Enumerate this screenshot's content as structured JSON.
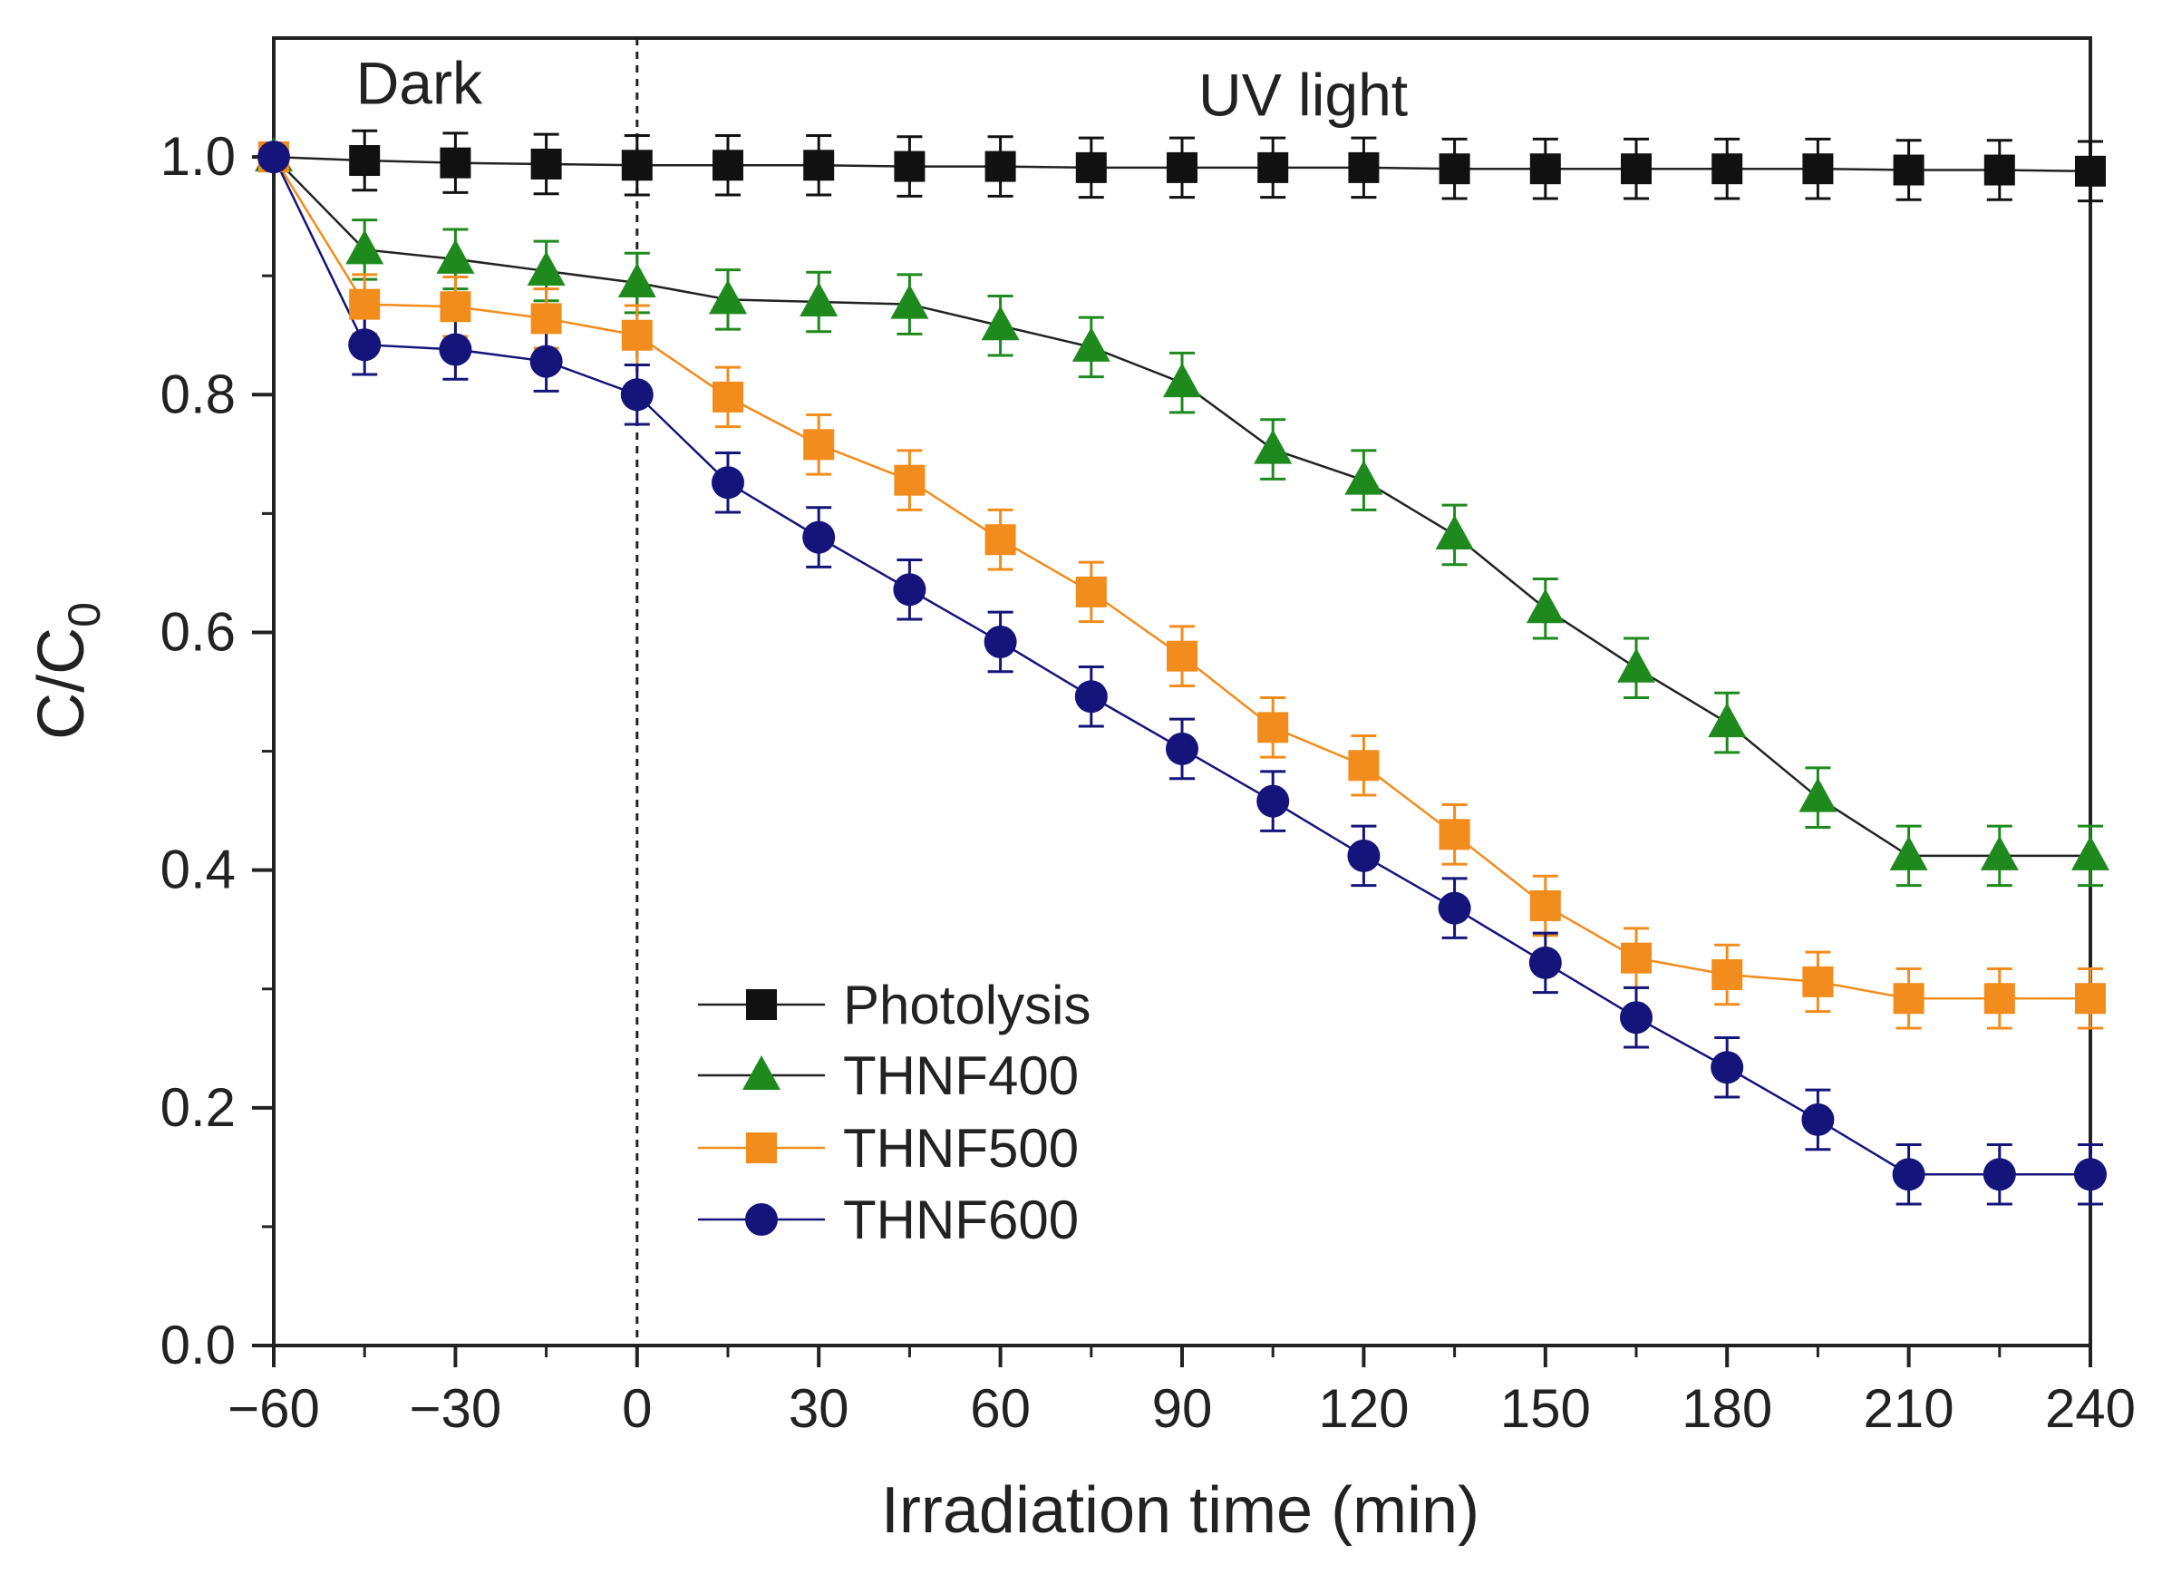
{
  "chart_data": {
    "type": "line",
    "title": "",
    "xlabel": "Irradiation time (min)",
    "ylabel_main": "C/C",
    "ylabel_sub": "0",
    "xlim": [
      -60,
      240
    ],
    "ylim": [
      0.0,
      1.1
    ],
    "x_ticks": [
      -60,
      -30,
      0,
      30,
      60,
      90,
      120,
      150,
      180,
      210,
      240
    ],
    "x_tick_labels": [
      "−60",
      "−30",
      "0",
      "30",
      "60",
      "90",
      "120",
      "150",
      "180",
      "210",
      "240"
    ],
    "y_ticks": [
      0.0,
      0.2,
      0.4,
      0.6,
      0.8,
      1.0
    ],
    "y_tick_labels": [
      "0.0",
      "0.2",
      "0.4",
      "0.6",
      "0.8",
      "1.0"
    ],
    "annotations": [
      {
        "name": "dark-region-label",
        "text": "Dark",
        "x": -36,
        "y": 1.06
      },
      {
        "name": "uv-region-label",
        "text": "UV light",
        "x": 110,
        "y": 1.05
      }
    ],
    "divider_x": 0,
    "legend_position": "lower-center",
    "grid": false,
    "x": [
      -60,
      -45,
      -30,
      -15,
      0,
      15,
      30,
      45,
      60,
      75,
      90,
      105,
      120,
      135,
      150,
      165,
      180,
      195,
      210,
      225,
      240
    ],
    "series": [
      {
        "name": "Photolysis",
        "marker": "square",
        "color": "#111111",
        "line_color": "#222222",
        "values": [
          1.0,
          0.997,
          0.995,
          0.994,
          0.993,
          0.993,
          0.993,
          0.992,
          0.992,
          0.991,
          0.991,
          0.991,
          0.991,
          0.99,
          0.99,
          0.99,
          0.99,
          0.99,
          0.989,
          0.989,
          0.988
        ],
        "errors": [
          0.025,
          0.025,
          0.025,
          0.025,
          0.025,
          0.025,
          0.025,
          0.025,
          0.025,
          0.025,
          0.025,
          0.025,
          0.025,
          0.025,
          0.025,
          0.025,
          0.025,
          0.025,
          0.025,
          0.025,
          0.025
        ]
      },
      {
        "name": "THNF400",
        "marker": "triangle",
        "color": "#1e8a1e",
        "line_color": "#222222",
        "values": [
          1.0,
          0.922,
          0.914,
          0.904,
          0.894,
          0.88,
          0.878,
          0.876,
          0.858,
          0.84,
          0.81,
          0.754,
          0.728,
          0.682,
          0.62,
          0.57,
          0.524,
          0.461,
          0.412,
          0.412,
          0.412
        ],
        "errors": [
          0.025,
          0.025,
          0.025,
          0.025,
          0.025,
          0.025,
          0.025,
          0.025,
          0.025,
          0.025,
          0.025,
          0.025,
          0.025,
          0.025,
          0.025,
          0.025,
          0.025,
          0.025,
          0.025,
          0.025,
          0.025
        ]
      },
      {
        "name": "THNF500",
        "marker": "square",
        "color": "#f28c1c",
        "line_color": "#f28c1c",
        "values": [
          1.0,
          0.876,
          0.874,
          0.864,
          0.85,
          0.798,
          0.758,
          0.728,
          0.678,
          0.634,
          0.58,
          0.52,
          0.488,
          0.43,
          0.37,
          0.326,
          0.312,
          0.306,
          0.292,
          0.292,
          0.292
        ],
        "errors": [
          0.025,
          0.025,
          0.025,
          0.025,
          0.025,
          0.025,
          0.025,
          0.025,
          0.025,
          0.025,
          0.025,
          0.025,
          0.025,
          0.025,
          0.025,
          0.025,
          0.025,
          0.025,
          0.025,
          0.025,
          0.025
        ]
      },
      {
        "name": "THNF600",
        "marker": "circle",
        "color": "#14147a",
        "line_color": "#14147a",
        "values": [
          1.0,
          0.842,
          0.838,
          0.828,
          0.8,
          0.726,
          0.68,
          0.636,
          0.592,
          0.546,
          0.502,
          0.458,
          0.412,
          0.368,
          0.322,
          0.276,
          0.234,
          0.19,
          0.144,
          0.144,
          0.144
        ],
        "errors": [
          0.025,
          0.025,
          0.025,
          0.025,
          0.025,
          0.025,
          0.025,
          0.025,
          0.025,
          0.025,
          0.025,
          0.025,
          0.025,
          0.025,
          0.025,
          0.025,
          0.025,
          0.025,
          0.025,
          0.025,
          0.025
        ]
      }
    ]
  }
}
